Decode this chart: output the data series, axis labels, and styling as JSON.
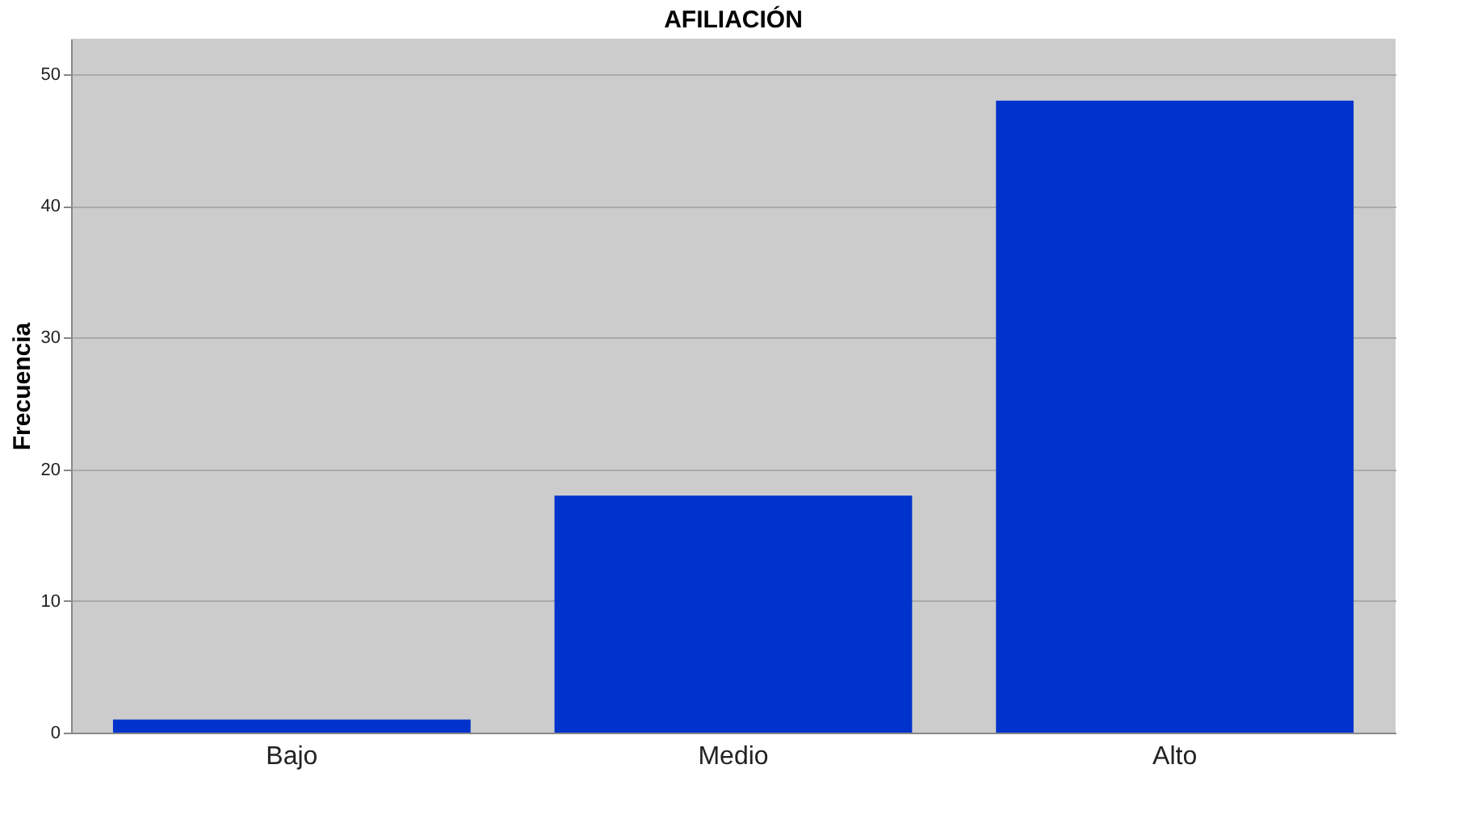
{
  "chart_data": {
    "type": "bar",
    "title": "AFILIACIÓN",
    "ylabel": "Frecuencia",
    "categories": [
      "Bajo",
      "Medio",
      "Alto"
    ],
    "values": [
      1,
      18,
      48
    ],
    "color": "#0033cc",
    "ylim": [
      0,
      52.7
    ],
    "yticks": [
      0,
      10,
      20,
      30,
      40,
      50
    ],
    "grid": "y"
  }
}
